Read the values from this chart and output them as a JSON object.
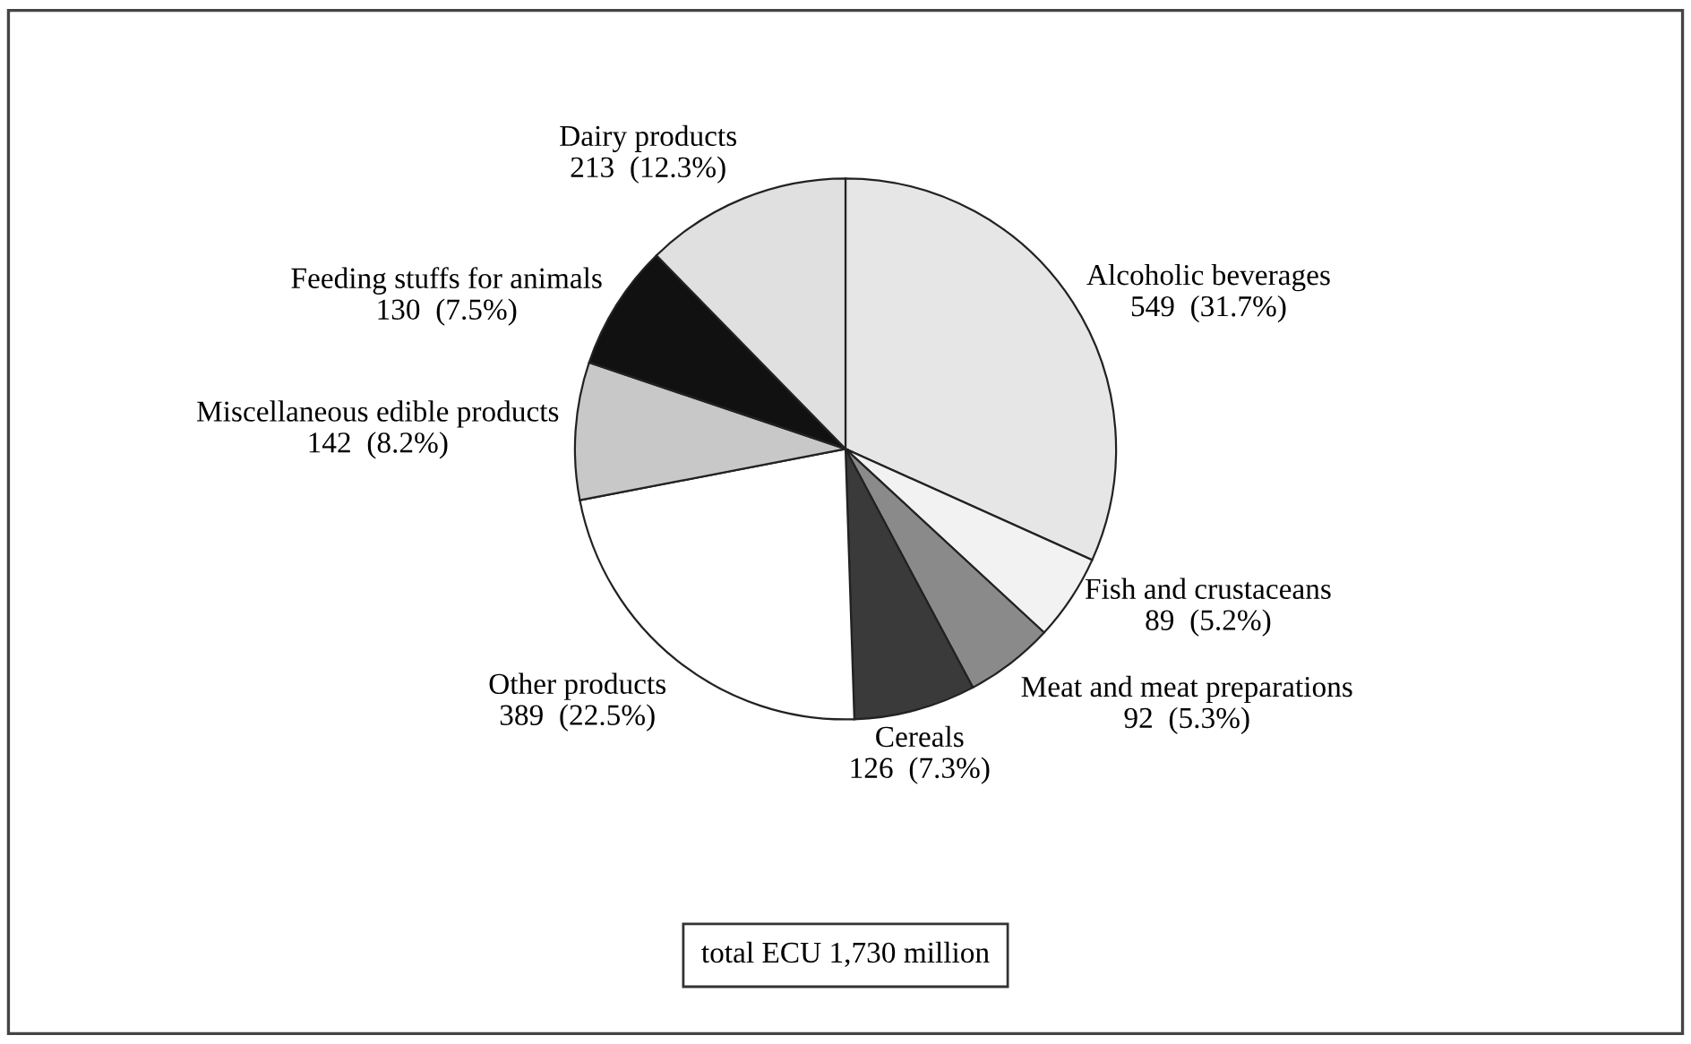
{
  "chart_data": {
    "type": "pie",
    "categories": [
      "Alcoholic beverages",
      "Fish and crustaceans",
      "Meat and meat preparations",
      "Cereals",
      "Other products",
      "Miscellaneous edible products",
      "Feeding stuffs for animals",
      "Dairy products"
    ],
    "values": [
      549,
      89,
      92,
      126,
      389,
      142,
      130,
      213
    ],
    "value_labels": [
      "549  (31.7%)",
      "89  (5.2%)",
      "92  (5.3%)",
      "126  (7.3%)",
      "389  (22.5%)",
      "142  (8.2%)",
      "130  (7.5%)",
      "213  (12.3%)"
    ],
    "colors": [
      "#e6e6e6",
      "#f2f2f2",
      "#8a8a8a",
      "#3a3a3a",
      "#ffffff",
      "#c8c8c8",
      "#111111",
      "#e0e0e0"
    ],
    "annotations": [
      "total ECU 1,730 million"
    ]
  }
}
